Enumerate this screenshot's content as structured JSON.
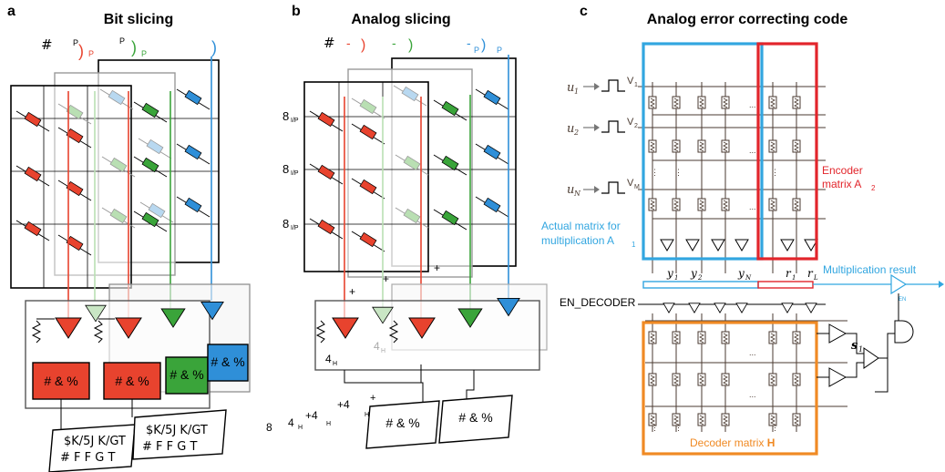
{
  "colors": {
    "red": "#e8432e",
    "green": "#3aa43a",
    "blue": "#2f8fd8",
    "cyan_box": "#32a6e0",
    "red_box": "#e2252b",
    "orange_box": "#f08a24",
    "line": "#000000",
    "grid": "#6b4a3a"
  },
  "panel_a": {
    "letter": "a",
    "title": "Bit slicing",
    "header": {
      "hash": "#",
      "p1": "P",
      "p1_sub": "P",
      "p2": "P",
      "p2_sub": "P"
    },
    "adc_labels": [
      "# & %",
      "# & %",
      "# & %",
      "# & %"
    ],
    "out_labels": [
      {
        "l1": "$K/5J K/GT",
        "l2": "# F F G T"
      },
      {
        "l1": "$K/5J K/GT",
        "l2": "# F F G T"
      }
    ]
  },
  "panel_b": {
    "letter": "b",
    "title": "Analog slicing",
    "header": {
      "hash": "#",
      "m1": "-",
      "m2": "-",
      "m3": "-",
      "p_sub": "P",
      "p_end": "P"
    },
    "row_labels": [
      "8",
      "8",
      "8"
    ],
    "row_sub": "I/P",
    "gain_top": "+",
    "gain_labels": [
      "4",
      "4"
    ],
    "gain_sub": "H",
    "sum_expr": {
      "a": "8",
      "b": "4",
      "c": "+4",
      "d": "+4",
      "plus": "+",
      "sub": "H"
    },
    "adc_labels": [
      "# & %",
      "# & %"
    ]
  },
  "panel_c": {
    "letter": "c",
    "title": "Analog error correcting code",
    "inputs": [
      {
        "u": "u",
        "u_sub": "1",
        "v": "V",
        "v_sub": "1"
      },
      {
        "u": "u",
        "u_sub": "2",
        "v": "V",
        "v_sub": "2"
      },
      {
        "u": "u",
        "u_sub": "N",
        "v": "V",
        "v_sub": "M"
      }
    ],
    "encoder_label_1": "Encoder",
    "encoder_label_2": "matrix A",
    "encoder_sub": "2",
    "actual_label_1": "Actual matrix for",
    "actual_label_2": "multiplication A",
    "actual_sub": "1",
    "y_labels": [
      {
        "n": "y",
        "s": "1"
      },
      {
        "n": "y",
        "s": "2"
      },
      {
        "n": "y",
        "s": "N"
      },
      {
        "n": "r",
        "s": "1"
      },
      {
        "n": "r",
        "s": "L"
      }
    ],
    "multiplication_result": "Multiplication result",
    "en_decoder": "EN_DECODER",
    "en_tag": "EN",
    "s_label": "s",
    "s_sub": "1",
    "decoder_label": "Decoder matrix ",
    "decoder_bold": "H"
  }
}
